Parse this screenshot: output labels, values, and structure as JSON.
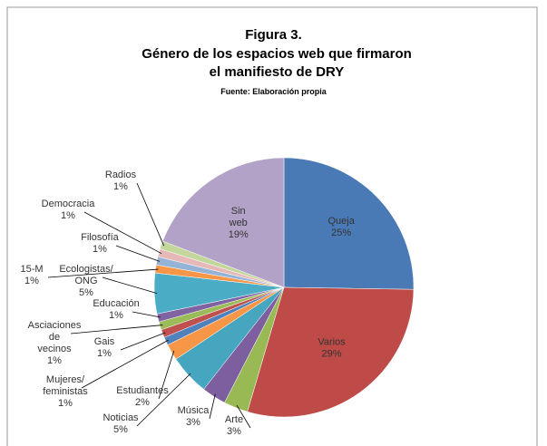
{
  "chart_data": {
    "type": "pie",
    "title": "Figura 3.",
    "subtitle": "Género de los espacios web que firmaron el manifiesto de DRY",
    "source": "Fuente: Elaboración propia",
    "categories": [
      "Queja",
      "Varios",
      "Arte",
      "Música",
      "Noticias",
      "Estudiantes",
      "Mujeres/ feministas",
      "Gais",
      "Asciaciones de vecinos",
      "Educación",
      "Ecologistas/ ONG",
      "15-M",
      "Filosofía",
      "Democracia",
      "Radios",
      "Sin web"
    ],
    "values": [
      25,
      29,
      3,
      3,
      5,
      2,
      1,
      1,
      1,
      1,
      5,
      1,
      1,
      1,
      1,
      19
    ],
    "value_labels": [
      "25%",
      "29%",
      "3%",
      "3%",
      "5%",
      "2%",
      "1%",
      "1%",
      "1%",
      "1%",
      "5%",
      "1%",
      "1%",
      "1%",
      "1%",
      "19%"
    ],
    "colors": [
      "#4a7ab5",
      "#be4b48",
      "#98b954",
      "#7d5fa0",
      "#46a5bf",
      "#f79646",
      "#4f81bd",
      "#c0504d",
      "#9bbb59",
      "#8064a2",
      "#4bacc6",
      "#f79646",
      "#95b3d7",
      "#e6b9b8",
      "#c3d69b",
      "#b3a2c7"
    ]
  }
}
